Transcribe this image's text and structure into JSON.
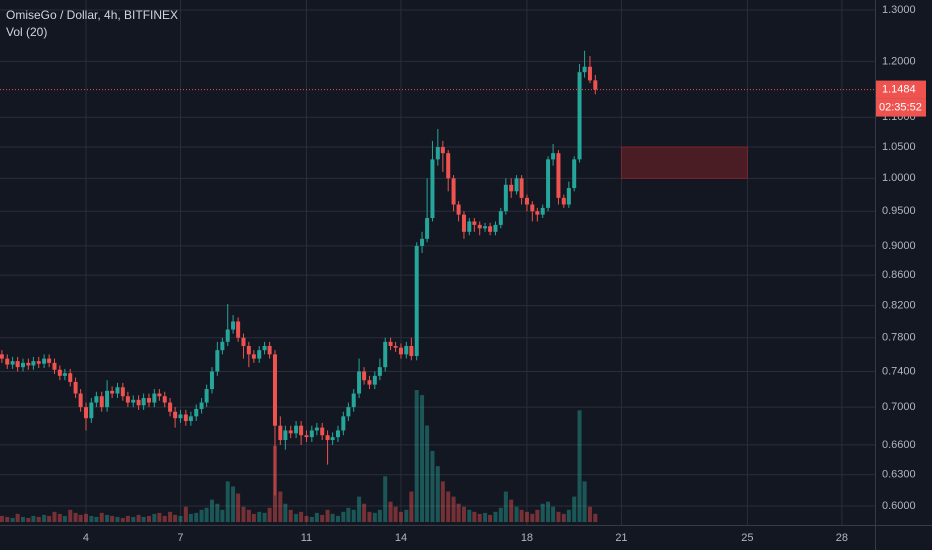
{
  "chart_data": {
    "type": "candlestick",
    "title": "OmiseGo / Dollar, 4h, BITFINEX",
    "volume_label": "Vol (20)",
    "log_scale": true,
    "grid": true,
    "up_color": "#26a69a",
    "down_color": "#ef5350",
    "xlim": [
      1.27,
      29.05
    ],
    "xticks": [
      4,
      7,
      11,
      14,
      18,
      21,
      25,
      28
    ],
    "ylim": [
      0.5825,
      1.3205
    ],
    "yticks": [
      {
        "value": 0.6,
        "label": "0.6000"
      },
      {
        "value": 0.63,
        "label": "0.6300"
      },
      {
        "value": 0.66,
        "label": "0.6600"
      },
      {
        "value": 0.7,
        "label": "0.7000"
      },
      {
        "value": 0.74,
        "label": "0.7400"
      },
      {
        "value": 0.78,
        "label": "0.7800"
      },
      {
        "value": 0.82,
        "label": "0.8200"
      },
      {
        "value": 0.86,
        "label": "0.8600"
      },
      {
        "value": 0.9,
        "label": "0.9000"
      },
      {
        "value": 0.95,
        "label": "0.9500"
      },
      {
        "value": 1.0,
        "label": "1.0000"
      },
      {
        "value": 1.05,
        "label": "1.0500"
      },
      {
        "value": 1.1,
        "label": "1.1000"
      },
      {
        "value": 1.2,
        "label": "1.2000"
      },
      {
        "value": 1.3,
        "label": "1.3000"
      }
    ],
    "last_price": 1.1484,
    "countdown": "02:35:52",
    "zone": {
      "x": [
        21,
        25
      ],
      "y": [
        1.0,
        1.05
      ],
      "color": "#4a1c24"
    },
    "x": [
      1.33,
      1.5,
      1.67,
      1.83,
      2,
      2.17,
      2.33,
      2.5,
      2.67,
      2.83,
      3,
      3.17,
      3.33,
      3.5,
      3.67,
      3.83,
      4,
      4.17,
      4.33,
      4.5,
      4.67,
      4.83,
      5,
      5.17,
      5.33,
      5.5,
      5.67,
      5.83,
      6,
      6.17,
      6.33,
      6.5,
      6.67,
      6.83,
      7,
      7.17,
      7.33,
      7.5,
      7.67,
      7.83,
      8,
      8.17,
      8.33,
      8.5,
      8.67,
      8.83,
      9,
      9.17,
      9.33,
      9.5,
      9.67,
      9.83,
      10,
      10.17,
      10.33,
      10.5,
      10.67,
      10.83,
      11,
      11.17,
      11.33,
      11.5,
      11.67,
      11.83,
      12,
      12.17,
      12.33,
      12.5,
      12.67,
      12.83,
      13,
      13.17,
      13.33,
      13.5,
      13.67,
      13.83,
      14,
      14.17,
      14.33,
      14.5,
      14.67,
      14.83,
      15,
      15.17,
      15.33,
      15.5,
      15.67,
      15.83,
      16,
      16.17,
      16.33,
      16.5,
      16.67,
      16.83,
      17,
      17.17,
      17.33,
      17.5,
      17.67,
      17.83,
      18,
      18.17,
      18.33,
      18.5,
      18.67,
      18.83,
      19,
      19.17,
      19.33,
      19.5,
      19.67,
      19.83,
      20,
      20.17
    ],
    "open": [
      0.76,
      0.755,
      0.748,
      0.752,
      0.745,
      0.75,
      0.747,
      0.752,
      0.749,
      0.755,
      0.75,
      0.742,
      0.735,
      0.738,
      0.728,
      0.715,
      0.7,
      0.688,
      0.705,
      0.712,
      0.7,
      0.718,
      0.715,
      0.722,
      0.712,
      0.705,
      0.708,
      0.702,
      0.71,
      0.705,
      0.715,
      0.712,
      0.705,
      0.695,
      0.688,
      0.692,
      0.685,
      0.69,
      0.698,
      0.705,
      0.72,
      0.74,
      0.765,
      0.775,
      0.79,
      0.8,
      0.78,
      0.77,
      0.76,
      0.755,
      0.765,
      0.77,
      0.76,
      0.68,
      0.665,
      0.675,
      0.672,
      0.68,
      0.67,
      0.668,
      0.675,
      0.678,
      0.67,
      0.665,
      0.668,
      0.675,
      0.69,
      0.7,
      0.715,
      0.74,
      0.73,
      0.725,
      0.735,
      0.745,
      0.775,
      0.77,
      0.768,
      0.76,
      0.77,
      0.758,
      0.9,
      0.91,
      0.94,
      1.03,
      1.05,
      1.04,
      1.0,
      0.96,
      0.945,
      0.92,
      0.935,
      0.93,
      0.925,
      0.928,
      0.92,
      0.93,
      0.95,
      0.99,
      0.98,
      1.0,
      0.97,
      0.96,
      0.95,
      0.945,
      0.955,
      1.03,
      1.04,
      0.97,
      0.96,
      0.985,
      1.03,
      1.18,
      1.19,
      1.165
    ],
    "high": [
      0.765,
      0.76,
      0.757,
      0.757,
      0.755,
      0.755,
      0.757,
      0.757,
      0.76,
      0.76,
      0.755,
      0.747,
      0.743,
      0.743,
      0.733,
      0.72,
      0.705,
      0.71,
      0.717,
      0.717,
      0.73,
      0.723,
      0.727,
      0.727,
      0.717,
      0.713,
      0.713,
      0.715,
      0.715,
      0.72,
      0.72,
      0.717,
      0.71,
      0.7,
      0.697,
      0.697,
      0.695,
      0.703,
      0.71,
      0.725,
      0.745,
      0.775,
      0.78,
      0.822,
      0.808,
      0.805,
      0.785,
      0.775,
      0.765,
      0.77,
      0.775,
      0.775,
      0.765,
      0.69,
      0.68,
      0.68,
      0.685,
      0.685,
      0.675,
      0.68,
      0.683,
      0.683,
      0.675,
      0.673,
      0.68,
      0.695,
      0.705,
      0.72,
      0.755,
      0.745,
      0.735,
      0.74,
      0.755,
      0.78,
      0.78,
      0.775,
      0.773,
      0.775,
      0.78,
      0.905,
      0.92,
      1.0,
      1.06,
      1.08,
      1.06,
      1.045,
      1.005,
      0.965,
      0.95,
      0.94,
      0.94,
      0.935,
      0.933,
      0.933,
      0.935,
      0.955,
      1.0,
      1.0,
      1.005,
      1.005,
      0.975,
      0.965,
      0.955,
      0.96,
      1.035,
      1.055,
      1.045,
      0.975,
      0.995,
      1.035,
      1.195,
      1.22,
      1.21,
      1.175
    ],
    "low": [
      0.75,
      0.743,
      0.743,
      0.74,
      0.74,
      0.742,
      0.742,
      0.744,
      0.744,
      0.745,
      0.737,
      0.73,
      0.73,
      0.723,
      0.71,
      0.695,
      0.675,
      0.683,
      0.7,
      0.695,
      0.695,
      0.71,
      0.71,
      0.707,
      0.7,
      0.7,
      0.697,
      0.697,
      0.7,
      0.7,
      0.707,
      0.7,
      0.69,
      0.678,
      0.683,
      0.68,
      0.68,
      0.685,
      0.693,
      0.7,
      0.715,
      0.735,
      0.76,
      0.77,
      0.785,
      0.775,
      0.755,
      0.745,
      0.75,
      0.75,
      0.76,
      0.755,
      0.61,
      0.66,
      0.655,
      0.667,
      0.667,
      0.66,
      0.663,
      0.663,
      0.67,
      0.665,
      0.64,
      0.66,
      0.663,
      0.67,
      0.685,
      0.695,
      0.71,
      0.725,
      0.72,
      0.72,
      0.73,
      0.74,
      0.765,
      0.763,
      0.755,
      0.755,
      0.753,
      0.753,
      0.89,
      0.905,
      0.935,
      1.02,
      1.01,
      0.98,
      0.95,
      0.935,
      0.91,
      0.915,
      0.92,
      0.915,
      0.92,
      0.915,
      0.915,
      0.925,
      0.945,
      0.97,
      0.975,
      0.96,
      0.95,
      0.935,
      0.935,
      0.94,
      0.95,
      1.02,
      0.96,
      0.955,
      0.955,
      0.98,
      1.025,
      1.17,
      1.16,
      1.14
    ],
    "close": [
      0.755,
      0.748,
      0.752,
      0.745,
      0.75,
      0.747,
      0.752,
      0.749,
      0.755,
      0.75,
      0.742,
      0.735,
      0.738,
      0.728,
      0.715,
      0.7,
      0.688,
      0.705,
      0.712,
      0.7,
      0.718,
      0.715,
      0.722,
      0.712,
      0.705,
      0.708,
      0.702,
      0.71,
      0.705,
      0.715,
      0.712,
      0.705,
      0.695,
      0.688,
      0.692,
      0.685,
      0.69,
      0.698,
      0.705,
      0.72,
      0.74,
      0.765,
      0.775,
      0.79,
      0.8,
      0.78,
      0.77,
      0.76,
      0.755,
      0.765,
      0.77,
      0.76,
      0.68,
      0.665,
      0.675,
      0.672,
      0.68,
      0.67,
      0.668,
      0.675,
      0.678,
      0.67,
      0.665,
      0.668,
      0.675,
      0.69,
      0.7,
      0.715,
      0.74,
      0.73,
      0.725,
      0.735,
      0.745,
      0.775,
      0.77,
      0.768,
      0.76,
      0.77,
      0.758,
      0.9,
      0.91,
      0.94,
      1.03,
      1.05,
      1.04,
      1.0,
      0.96,
      0.945,
      0.92,
      0.935,
      0.93,
      0.925,
      0.928,
      0.92,
      0.93,
      0.95,
      0.99,
      0.98,
      1.0,
      0.97,
      0.96,
      0.95,
      0.945,
      0.955,
      1.03,
      1.04,
      0.97,
      0.96,
      0.985,
      1.03,
      1.18,
      1.19,
      1.165,
      1.1484
    ],
    "volume": [
      6,
      5,
      4,
      8,
      5,
      4,
      6,
      5,
      7,
      6,
      10,
      8,
      6,
      12,
      9,
      7,
      8,
      6,
      5,
      9,
      7,
      6,
      5,
      4,
      6,
      5,
      7,
      5,
      6,
      8,
      9,
      6,
      10,
      7,
      6,
      15,
      8,
      9,
      12,
      14,
      22,
      18,
      12,
      40,
      35,
      28,
      15,
      12,
      8,
      10,
      9,
      14,
      75,
      30,
      18,
      12,
      8,
      10,
      6,
      5,
      9,
      7,
      12,
      8,
      6,
      10,
      14,
      12,
      25,
      18,
      10,
      9,
      12,
      45,
      20,
      15,
      10,
      12,
      30,
      130,
      125,
      95,
      70,
      55,
      40,
      30,
      25,
      18,
      15,
      12,
      10,
      8,
      9,
      7,
      10,
      14,
      30,
      22,
      15,
      12,
      10,
      8,
      12,
      18,
      20,
      15,
      10,
      8,
      12,
      25,
      110,
      40,
      15,
      8
    ]
  }
}
